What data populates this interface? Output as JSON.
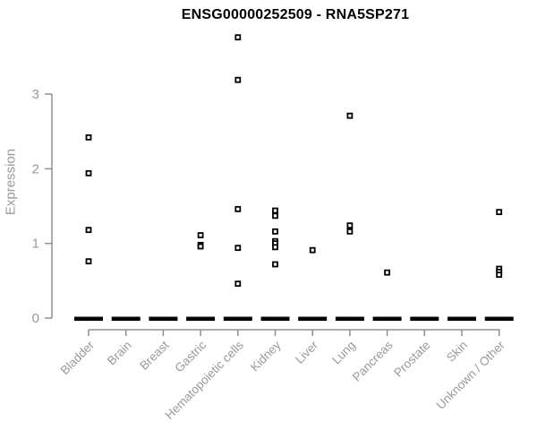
{
  "title": "ENSG00000252509 - RNA5SP271",
  "colors": {
    "title": "#000000",
    "axis_line": "#8f8f8f",
    "tick_label": "#999999",
    "category_label": "#999999",
    "point_stroke": "#000000",
    "point_fill": "#ffffff",
    "zero_dash": "#000000",
    "background": "#ffffff"
  },
  "chart_data": {
    "type": "scatter",
    "title": "ENSG00000252509 - RNA5SP271",
    "xlabel": "",
    "ylabel": "Expression",
    "categories": [
      "Bladder",
      "Brain",
      "Breast",
      "Gastric",
      "Hematopoietic cells",
      "Kidney",
      "Liver",
      "Lung",
      "Pancreas",
      "Prostate",
      "Skin",
      "Unknown / Other"
    ],
    "yticks": [
      0,
      1,
      2,
      3
    ],
    "ylim": [
      0,
      3.9
    ],
    "grid": false,
    "legend": "none",
    "marker": "open-square",
    "zero_cluster_all_categories": true,
    "zero_cluster_note": "every category shows a dense mass of samples at expression 0, drawn as a thick black dash",
    "points_by_category": {
      "Bladder": [
        2.42,
        1.94,
        1.18,
        0.76
      ],
      "Brain": [],
      "Breast": [],
      "Gastric": [
        1.11,
        0.98,
        0.96
      ],
      "Hematopoietic cells": [
        3.76,
        3.19,
        1.46,
        0.94,
        0.46
      ],
      "Kidney": [
        1.44,
        1.37,
        1.16,
        1.03,
        1.0,
        0.95,
        0.72
      ],
      "Liver": [
        0.91
      ],
      "Lung": [
        2.71,
        1.24,
        1.16
      ],
      "Pancreas": [
        0.61
      ],
      "Prostate": [],
      "Skin": [],
      "Unknown / Other": [
        1.42,
        0.66,
        0.62,
        0.58
      ]
    }
  }
}
